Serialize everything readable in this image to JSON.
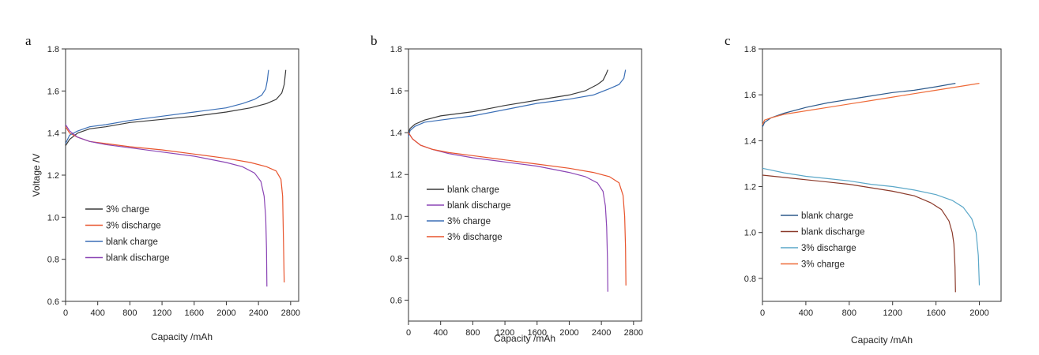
{
  "colors": {
    "black": "#3a3a3a",
    "red": "#e8542d",
    "blue": "#3b6fb6",
    "purple": "#8b45b5",
    "brown": "#8b3a2a",
    "teal": "#5aa7c8",
    "orange": "#ee6a38",
    "darkblue": "#2d5a8c"
  },
  "chart_data": [
    {
      "panel": "a",
      "type": "line",
      "xlabel": "Capacity /mAh",
      "ylabel": "Voltage /V",
      "xlim": [
        0,
        2900
      ],
      "ylim": [
        0.6,
        1.8
      ],
      "xticks": [
        0,
        400,
        800,
        1200,
        1600,
        2000,
        2400,
        2800
      ],
      "yticks": [
        0.6,
        0.8,
        1.0,
        1.2,
        1.4,
        1.6,
        1.8
      ],
      "legend_position": "lower-left",
      "series": [
        {
          "name": "3% charge",
          "color": "black",
          "x": [
            0,
            50,
            150,
            300,
            500,
            800,
            1200,
            1600,
            2000,
            2300,
            2500,
            2620,
            2690,
            2720,
            2740
          ],
          "y": [
            1.34,
            1.37,
            1.4,
            1.42,
            1.43,
            1.45,
            1.465,
            1.48,
            1.5,
            1.52,
            1.54,
            1.56,
            1.59,
            1.63,
            1.7
          ]
        },
        {
          "name": "3% discharge",
          "color": "red",
          "x": [
            0,
            50,
            150,
            300,
            500,
            800,
            1200,
            1600,
            2000,
            2300,
            2500,
            2620,
            2680,
            2700,
            2710,
            2720
          ],
          "y": [
            1.43,
            1.4,
            1.38,
            1.36,
            1.35,
            1.335,
            1.32,
            1.3,
            1.28,
            1.26,
            1.24,
            1.22,
            1.18,
            1.1,
            0.9,
            0.69
          ]
        },
        {
          "name": "blank charge",
          "color": "blue",
          "x": [
            0,
            50,
            150,
            300,
            500,
            800,
            1200,
            1600,
            2000,
            2200,
            2350,
            2440,
            2490,
            2510,
            2525
          ],
          "y": [
            1.35,
            1.39,
            1.41,
            1.43,
            1.44,
            1.46,
            1.48,
            1.5,
            1.52,
            1.54,
            1.56,
            1.58,
            1.61,
            1.65,
            1.7
          ]
        },
        {
          "name": "blank discharge",
          "color": "purple",
          "x": [
            0,
            50,
            150,
            300,
            500,
            800,
            1200,
            1600,
            2000,
            2200,
            2350,
            2430,
            2470,
            2490,
            2500,
            2505
          ],
          "y": [
            1.44,
            1.41,
            1.38,
            1.36,
            1.345,
            1.33,
            1.31,
            1.29,
            1.26,
            1.24,
            1.21,
            1.17,
            1.1,
            1.0,
            0.85,
            0.67
          ]
        }
      ]
    },
    {
      "panel": "b",
      "type": "line",
      "xlabel": "Capacity /mAh",
      "ylabel": "",
      "xlim": [
        0,
        2900
      ],
      "ylim": [
        0.5,
        1.8
      ],
      "xticks": [
        0,
        400,
        800,
        1200,
        1600,
        2000,
        2400,
        2800
      ],
      "yticks": [
        0.6,
        0.8,
        1.0,
        1.2,
        1.4,
        1.6,
        1.8
      ],
      "legend_position": "center-left",
      "series": [
        {
          "name": "blank charge",
          "color": "black",
          "x": [
            0,
            20,
            80,
            200,
            400,
            800,
            1200,
            1600,
            2000,
            2200,
            2350,
            2420,
            2460,
            2480
          ],
          "y": [
            1.4,
            1.42,
            1.44,
            1.46,
            1.48,
            1.5,
            1.53,
            1.555,
            1.58,
            1.6,
            1.63,
            1.65,
            1.68,
            1.7
          ]
        },
        {
          "name": "blank discharge",
          "color": "purple",
          "x": [
            0,
            50,
            150,
            300,
            500,
            800,
            1200,
            1600,
            2000,
            2200,
            2350,
            2420,
            2450,
            2465,
            2475,
            2480
          ],
          "y": [
            1.4,
            1.37,
            1.34,
            1.32,
            1.3,
            1.28,
            1.26,
            1.24,
            1.21,
            1.19,
            1.16,
            1.12,
            1.05,
            0.95,
            0.8,
            0.64
          ]
        },
        {
          "name": "3% charge",
          "color": "blue",
          "x": [
            0,
            20,
            80,
            200,
            400,
            800,
            1200,
            1600,
            2000,
            2300,
            2500,
            2620,
            2680,
            2700
          ],
          "y": [
            1.38,
            1.41,
            1.43,
            1.45,
            1.46,
            1.48,
            1.51,
            1.54,
            1.56,
            1.58,
            1.61,
            1.63,
            1.66,
            1.7
          ]
        },
        {
          "name": "3% discharge",
          "color": "red",
          "x": [
            0,
            50,
            150,
            300,
            500,
            800,
            1200,
            1600,
            2000,
            2300,
            2500,
            2620,
            2670,
            2690,
            2700,
            2705
          ],
          "y": [
            1.4,
            1.37,
            1.34,
            1.32,
            1.305,
            1.29,
            1.27,
            1.25,
            1.23,
            1.21,
            1.19,
            1.16,
            1.1,
            1.0,
            0.85,
            0.67
          ]
        }
      ]
    },
    {
      "panel": "c",
      "type": "line",
      "xlabel": "Capacity /mAh",
      "ylabel": "",
      "xlim": [
        0,
        2200
      ],
      "ylim": [
        0.7,
        1.8
      ],
      "xticks": [
        0,
        400,
        800,
        1200,
        1600,
        2000
      ],
      "yticks": [
        0.8,
        1.0,
        1.2,
        1.4,
        1.6,
        1.8
      ],
      "legend_position": "center-left",
      "series": [
        {
          "name": "blank charge",
          "color": "darkblue",
          "x": [
            0,
            20,
            80,
            200,
            400,
            600,
            800,
            1000,
            1200,
            1400,
            1600,
            1780
          ],
          "y": [
            1.46,
            1.48,
            1.5,
            1.52,
            1.545,
            1.565,
            1.58,
            1.595,
            1.61,
            1.62,
            1.635,
            1.65
          ]
        },
        {
          "name": "blank discharge",
          "color": "brown",
          "x": [
            0,
            200,
            400,
            600,
            800,
            1000,
            1200,
            1400,
            1550,
            1650,
            1720,
            1750,
            1765,
            1775,
            1780
          ],
          "y": [
            1.25,
            1.24,
            1.23,
            1.22,
            1.21,
            1.195,
            1.18,
            1.16,
            1.13,
            1.1,
            1.05,
            1.0,
            0.95,
            0.85,
            0.74
          ]
        },
        {
          "name": "3% discharge",
          "color": "teal",
          "x": [
            0,
            200,
            400,
            600,
            800,
            1000,
            1200,
            1400,
            1600,
            1750,
            1850,
            1930,
            1970,
            1990,
            2000
          ],
          "y": [
            1.28,
            1.26,
            1.245,
            1.235,
            1.225,
            1.21,
            1.2,
            1.185,
            1.165,
            1.14,
            1.11,
            1.06,
            1.0,
            0.9,
            0.77
          ]
        },
        {
          "name": "3% charge",
          "color": "orange",
          "x": [
            0,
            20,
            80,
            200,
            400,
            600,
            800,
            1000,
            1200,
            1400,
            1600,
            1800,
            2000
          ],
          "y": [
            1.47,
            1.49,
            1.5,
            1.515,
            1.53,
            1.545,
            1.56,
            1.575,
            1.59,
            1.605,
            1.62,
            1.635,
            1.65
          ]
        }
      ]
    }
  ]
}
